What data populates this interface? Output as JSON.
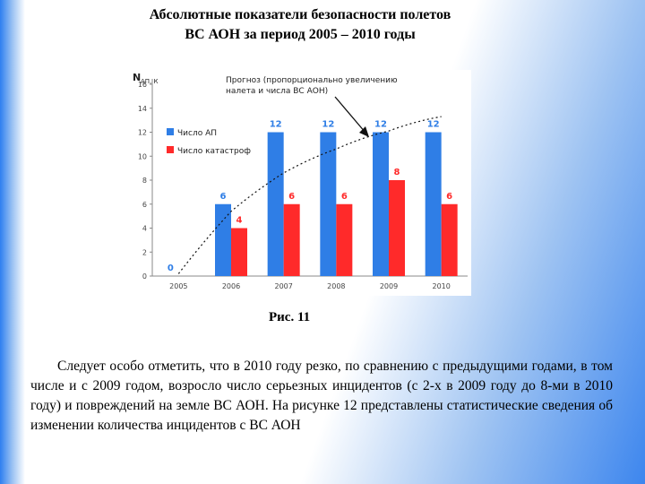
{
  "title": {
    "line1": "Абсолютные показатели безопасности полетов",
    "line2": "ВС АОН за период 2005 – 2010 годы"
  },
  "caption": "Рис. 11",
  "paragraph": "Следует особо отметить, что в 2010 году резко, по сравнению с предыдущими годами, в том числе и с 2009 годом, возросло число серьезных инцидентов (с 2-х в 2009 году до 8-ми в 2010 году) и повреждений на земле ВС АОН. На рисунке 12 представлены статистические сведения об изменении количества инцидентов с ВС АОН",
  "colors": {
    "series1": "#2f7ee6",
    "series2": "#ff2a2a"
  },
  "chart_data": {
    "type": "bar",
    "ylabel": "N",
    "ylabel_sub": "АП, К",
    "ylim": [
      0,
      16
    ],
    "yticks": [
      0,
      2,
      4,
      6,
      8,
      10,
      12,
      14,
      16
    ],
    "categories": [
      "2005",
      "2006",
      "2007",
      "2008",
      "2009",
      "2010"
    ],
    "series": [
      {
        "name": "Число АП",
        "values": [
          0,
          6,
          12,
          12,
          12,
          12
        ],
        "labels": [
          "0",
          "6",
          "12",
          "12",
          "12",
          "12"
        ]
      },
      {
        "name": "Число катастроф",
        "values": [
          0,
          4,
          6,
          6,
          8,
          6
        ],
        "labels": [
          "",
          "4",
          "6",
          "6",
          "8",
          "6"
        ]
      }
    ],
    "trend": {
      "style": "dotted",
      "values": [
        0.2,
        5.4,
        8.6,
        10.6,
        12.1,
        13.3
      ]
    },
    "annotation": {
      "line1": "Прогноз (пропорционально увеличению",
      "line2": "налета и числа ВС АОН)"
    },
    "legend_position": "left",
    "grid": false
  }
}
